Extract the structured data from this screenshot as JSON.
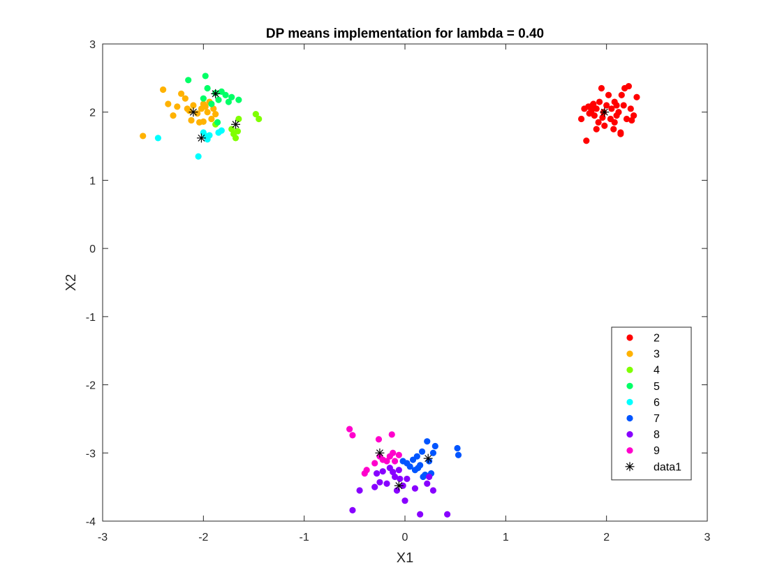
{
  "chart_data": {
    "type": "scatter",
    "title": "DP means implementation for lambda = 0.40",
    "xlabel": "X1",
    "ylabel": "X2",
    "xlim": [
      -3,
      3
    ],
    "ylim": [
      -4,
      3
    ],
    "xticks": [
      -3,
      -2,
      -1,
      0,
      1,
      2,
      3
    ],
    "yticks": [
      -4,
      -3,
      -2,
      -1,
      0,
      1,
      2,
      3
    ],
    "grid": false,
    "legend_placement": "bottom-right",
    "series": [
      {
        "name": "2",
        "color": "#ff0000",
        "marker": "dot",
        "points": [
          [
            1.75,
            1.9
          ],
          [
            1.78,
            2.05
          ],
          [
            1.8,
            1.58
          ],
          [
            1.82,
            2.08
          ],
          [
            1.83,
            1.98
          ],
          [
            1.85,
            2.02
          ],
          [
            1.86,
            2.1
          ],
          [
            1.88,
            1.95
          ],
          [
            1.9,
            2.05
          ],
          [
            1.92,
            1.85
          ],
          [
            1.93,
            2.15
          ],
          [
            1.95,
            2.35
          ],
          [
            1.97,
            2.0
          ],
          [
            1.98,
            1.8
          ],
          [
            2.0,
            2.1
          ],
          [
            2.02,
            2.25
          ],
          [
            2.04,
            1.9
          ],
          [
            2.05,
            2.05
          ],
          [
            2.07,
            1.75
          ],
          [
            2.08,
            2.15
          ],
          [
            2.1,
            1.95
          ],
          [
            2.12,
            2.0
          ],
          [
            2.14,
            1.7
          ],
          [
            2.15,
            2.25
          ],
          [
            2.17,
            2.1
          ],
          [
            2.18,
            2.35
          ],
          [
            2.2,
            1.9
          ],
          [
            2.22,
            2.38
          ],
          [
            2.24,
            2.05
          ],
          [
            2.25,
            1.88
          ],
          [
            2.27,
            1.95
          ],
          [
            2.3,
            2.22
          ],
          [
            2.08,
            1.85
          ],
          [
            1.96,
            1.92
          ],
          [
            1.9,
            1.75
          ],
          [
            2.14,
            1.68
          ],
          [
            1.87,
            2.12
          ],
          [
            2.1,
            2.1
          ]
        ]
      },
      {
        "name": "3",
        "color": "#ffb200",
        "marker": "dot",
        "points": [
          [
            -2.6,
            1.65
          ],
          [
            -2.4,
            2.33
          ],
          [
            -2.35,
            2.12
          ],
          [
            -2.3,
            1.95
          ],
          [
            -2.26,
            2.08
          ],
          [
            -2.22,
            2.27
          ],
          [
            -2.18,
            2.2
          ],
          [
            -2.16,
            2.05
          ],
          [
            -2.12,
            1.88
          ],
          [
            -2.1,
            2.1
          ],
          [
            -2.06,
            1.98
          ],
          [
            -2.04,
            1.85
          ],
          [
            -2.02,
            2.05
          ],
          [
            -2.0,
            1.86
          ],
          [
            -1.98,
            2.08
          ],
          [
            -1.96,
            2.0
          ],
          [
            -1.94,
            2.15
          ],
          [
            -1.92,
            1.9
          ],
          [
            -1.9,
            2.05
          ],
          [
            -1.88,
            1.97
          ],
          [
            -2.14,
            2.02
          ],
          [
            -2.0,
            2.12
          ]
        ]
      },
      {
        "name": "4",
        "color": "#7fff00",
        "marker": "dot",
        "points": [
          [
            -1.88,
            1.82
          ],
          [
            -1.72,
            1.75
          ],
          [
            -1.7,
            1.68
          ],
          [
            -1.68,
            1.62
          ],
          [
            -1.66,
            1.72
          ],
          [
            -1.65,
            1.9
          ],
          [
            -1.48,
            1.97
          ],
          [
            -1.45,
            1.9
          ]
        ]
      },
      {
        "name": "5",
        "color": "#00ff66",
        "marker": "dot",
        "points": [
          [
            -2.15,
            2.47
          ],
          [
            -2.0,
            2.2
          ],
          [
            -1.98,
            2.53
          ],
          [
            -1.96,
            2.35
          ],
          [
            -1.92,
            2.12
          ],
          [
            -1.88,
            2.28
          ],
          [
            -1.85,
            2.18
          ],
          [
            -1.82,
            2.3
          ],
          [
            -1.78,
            2.25
          ],
          [
            -1.75,
            2.15
          ],
          [
            -1.72,
            2.22
          ],
          [
            -1.65,
            2.18
          ],
          [
            -1.86,
            1.85
          ]
        ]
      },
      {
        "name": "6",
        "color": "#00ffff",
        "marker": "dot",
        "points": [
          [
            -2.45,
            1.62
          ],
          [
            -2.05,
            1.35
          ],
          [
            -2.0,
            1.7
          ],
          [
            -1.98,
            1.65
          ],
          [
            -1.96,
            1.6
          ],
          [
            -1.94,
            1.66
          ],
          [
            -1.85,
            1.7
          ],
          [
            -1.82,
            1.73
          ]
        ]
      },
      {
        "name": "7",
        "color": "#0055ff",
        "marker": "dot",
        "points": [
          [
            -0.02,
            -3.12
          ],
          [
            0.02,
            -3.15
          ],
          [
            0.05,
            -3.2
          ],
          [
            0.08,
            -3.1
          ],
          [
            0.1,
            -3.25
          ],
          [
            0.12,
            -3.05
          ],
          [
            0.15,
            -3.18
          ],
          [
            0.17,
            -2.98
          ],
          [
            0.2,
            -3.32
          ],
          [
            0.22,
            -2.83
          ],
          [
            0.24,
            -3.12
          ],
          [
            0.26,
            -3.3
          ],
          [
            0.28,
            -3.0
          ],
          [
            0.3,
            -2.9
          ],
          [
            0.52,
            -2.93
          ],
          [
            0.53,
            -3.03
          ],
          [
            0.18,
            -3.35
          ],
          [
            0.13,
            -3.22
          ]
        ]
      },
      {
        "name": "8",
        "color": "#8800ff",
        "marker": "dot",
        "points": [
          [
            -0.52,
            -3.84
          ],
          [
            -0.45,
            -3.55
          ],
          [
            -0.3,
            -3.5
          ],
          [
            -0.28,
            -3.3
          ],
          [
            -0.25,
            -3.43
          ],
          [
            -0.22,
            -3.27
          ],
          [
            -0.18,
            -3.45
          ],
          [
            -0.12,
            -3.28
          ],
          [
            -0.1,
            -3.35
          ],
          [
            -0.08,
            -3.55
          ],
          [
            -0.05,
            -3.38
          ],
          [
            -0.02,
            -3.48
          ],
          [
            0.0,
            -3.7
          ],
          [
            0.02,
            -3.38
          ],
          [
            0.1,
            -3.52
          ],
          [
            0.15,
            -3.9
          ],
          [
            0.22,
            -3.45
          ],
          [
            0.24,
            -3.35
          ],
          [
            0.28,
            -3.55
          ],
          [
            0.42,
            -3.9
          ],
          [
            -0.15,
            -3.22
          ],
          [
            -0.06,
            -3.25
          ]
        ]
      },
      {
        "name": "9",
        "color": "#ff00cc",
        "marker": "dot",
        "points": [
          [
            -0.55,
            -2.65
          ],
          [
            -0.52,
            -2.74
          ],
          [
            -0.4,
            -3.3
          ],
          [
            -0.38,
            -3.25
          ],
          [
            -0.3,
            -3.15
          ],
          [
            -0.26,
            -2.8
          ],
          [
            -0.22,
            -3.1
          ],
          [
            -0.18,
            -3.12
          ],
          [
            -0.15,
            -3.05
          ],
          [
            -0.13,
            -2.73
          ],
          [
            -0.12,
            -3.0
          ],
          [
            -0.1,
            -3.12
          ],
          [
            -0.06,
            -3.03
          ],
          [
            -0.25,
            -3.05
          ]
        ]
      },
      {
        "name": "data1",
        "color": "#000000",
        "marker": "asterisk",
        "points": [
          [
            1.98,
            2.0
          ],
          [
            -2.1,
            2.0
          ],
          [
            -1.88,
            2.27
          ],
          [
            -1.68,
            1.82
          ],
          [
            -2.02,
            1.62
          ],
          [
            -0.25,
            -3.0
          ],
          [
            0.23,
            -3.08
          ],
          [
            -0.06,
            -3.48
          ]
        ]
      }
    ]
  }
}
